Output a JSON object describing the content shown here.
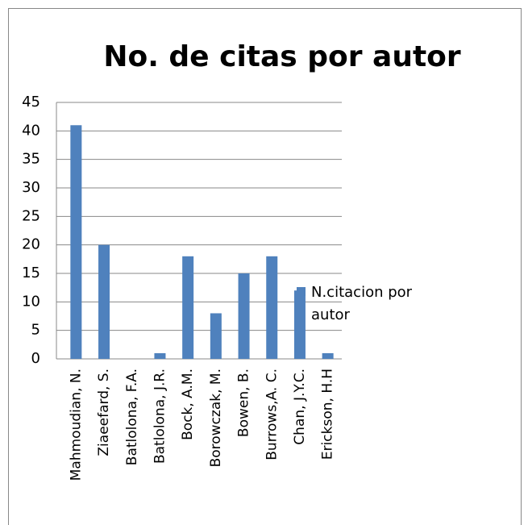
{
  "chart_data": {
    "type": "bar",
    "title": "No. de citas por autor",
    "categories": [
      "Mahmoudian, N.",
      "Ziaeefard, S.",
      "Batlolona, F.A.",
      "Batlolona, J.R.",
      "Bock, A.M.",
      "Borowczak, M.",
      "Bowen, B.",
      "Burrows,A. C.",
      "Chan, J.Y.C.",
      "Erickson, H.H"
    ],
    "series": [
      {
        "name": "N.citacion por autor",
        "color": "#4f81bd",
        "values": [
          41,
          20,
          0,
          1,
          18,
          8,
          15,
          18,
          12,
          1
        ]
      }
    ],
    "ylim": [
      0,
      45
    ],
    "yticks": [
      0,
      5,
      10,
      15,
      20,
      25,
      30,
      35,
      40,
      45
    ],
    "grid": true,
    "legend": "right"
  }
}
